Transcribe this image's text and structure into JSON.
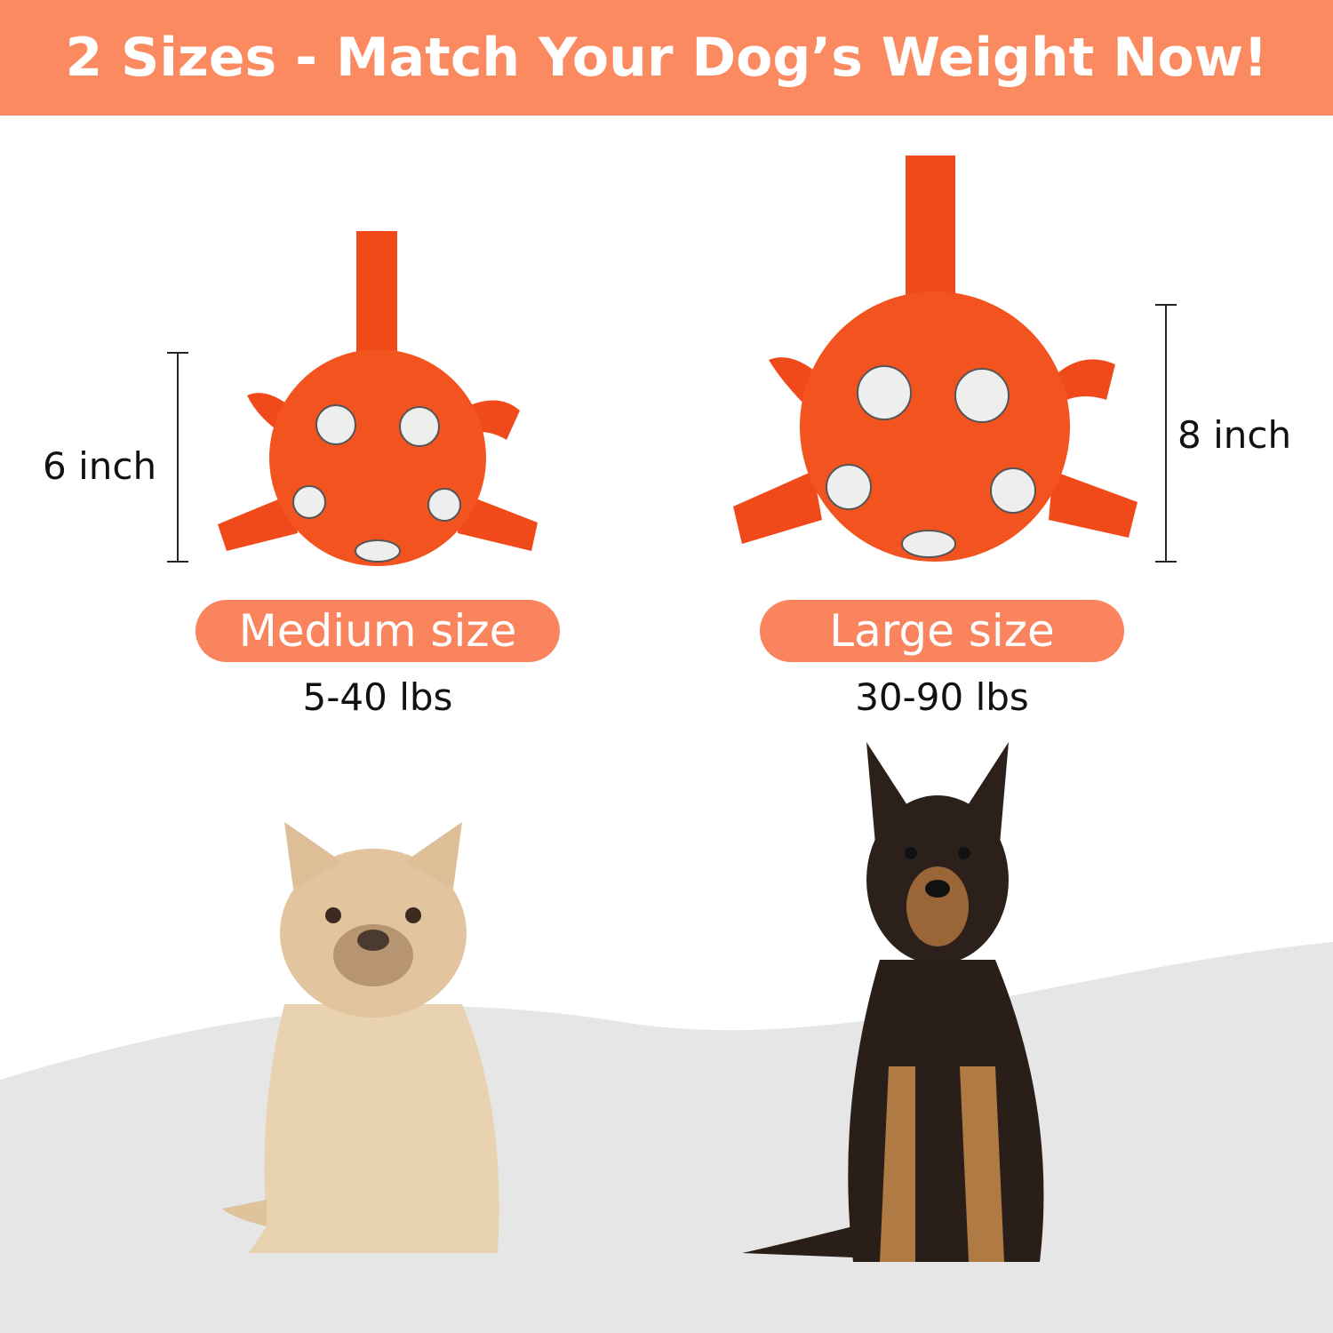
{
  "header": {
    "title": "2 Sizes - Match Your Dog’s Weight Now!"
  },
  "colors": {
    "accent": "#FB8A60",
    "ball": "#F2531F",
    "floor": "#E4E4E4"
  },
  "products": [
    {
      "size_label": "Medium size",
      "dimension": "6 inch",
      "weight_range": "5-40 lbs"
    },
    {
      "size_label": "Large size",
      "dimension": "8 inch",
      "weight_range": "30-90 lbs"
    }
  ]
}
